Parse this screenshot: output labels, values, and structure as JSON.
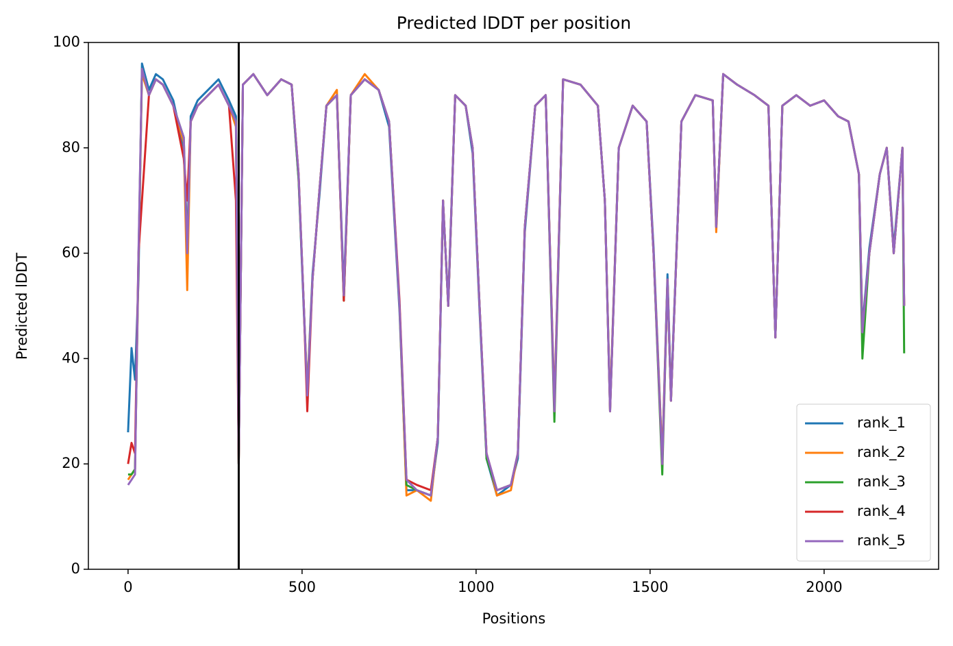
{
  "chart_data": {
    "type": "line",
    "title": "Predicted lDDT per position",
    "xlabel": "Positions",
    "ylabel": "Predicted lDDT",
    "x": [
      0,
      10,
      20,
      30,
      40,
      60,
      80,
      100,
      130,
      160,
      170,
      180,
      200,
      230,
      260,
      290,
      310,
      318,
      330,
      360,
      400,
      440,
      470,
      490,
      505,
      515,
      530,
      550,
      570,
      600,
      620,
      640,
      680,
      720,
      750,
      780,
      800,
      830,
      870,
      890,
      905,
      920,
      940,
      970,
      990,
      1010,
      1030,
      1060,
      1100,
      1120,
      1140,
      1170,
      1200,
      1225,
      1250,
      1300,
      1350,
      1370,
      1385,
      1410,
      1450,
      1490,
      1510,
      1535,
      1550,
      1560,
      1590,
      1630,
      1680,
      1690,
      1710,
      1750,
      1800,
      1840,
      1860,
      1880,
      1920,
      1960,
      2000,
      2040,
      2070,
      2100,
      2110,
      2130,
      2160,
      2180,
      2200,
      2225,
      2230
    ],
    "series": [
      {
        "name": "rank_1",
        "color": "#1f77b4",
        "values": [
          26,
          42,
          36,
          55,
          96,
          91,
          94,
          93,
          89,
          80,
          62,
          86,
          89,
          91,
          93,
          89,
          86,
          20,
          92,
          94,
          90,
          93,
          92,
          74,
          49,
          34,
          56,
          71,
          88,
          90,
          53,
          90,
          93,
          91,
          84,
          49,
          15,
          15,
          14,
          24,
          69,
          51,
          90,
          88,
          79,
          49,
          21,
          14,
          16,
          21,
          64,
          88,
          90,
          31,
          93,
          92,
          88,
          70,
          31,
          80,
          88,
          85,
          61,
          21,
          56,
          33,
          85,
          90,
          89,
          65,
          94,
          92,
          90,
          88,
          44,
          88,
          90,
          88,
          89,
          86,
          85,
          75,
          46,
          61,
          75,
          80,
          61,
          80,
          50
        ]
      },
      {
        "name": "rank_2",
        "color": "#ff7f0e",
        "values": [
          17,
          18,
          19,
          58,
          94,
          90,
          93,
          92,
          88,
          81,
          53,
          85,
          88,
          90,
          92,
          88,
          84,
          20,
          92,
          94,
          90,
          93,
          92,
          75,
          50,
          34,
          55,
          72,
          88,
          91,
          51,
          90,
          94,
          91,
          85,
          50,
          14,
          15,
          13,
          25,
          70,
          50,
          90,
          88,
          80,
          50,
          22,
          14,
          15,
          22,
          65,
          88,
          90,
          31,
          93,
          92,
          88,
          70,
          31,
          80,
          88,
          85,
          60,
          21,
          55,
          32,
          85,
          90,
          89,
          64,
          94,
          92,
          90,
          88,
          44,
          88,
          90,
          88,
          89,
          86,
          85,
          75,
          45,
          60,
          75,
          80,
          60,
          80,
          50
        ]
      },
      {
        "name": "rank_3",
        "color": "#2ca02c",
        "values": [
          18,
          18,
          19,
          59,
          95,
          90,
          93,
          92,
          88,
          82,
          61,
          85,
          88,
          90,
          92,
          88,
          85,
          20,
          92,
          94,
          90,
          93,
          92,
          74,
          50,
          33,
          55,
          72,
          88,
          90,
          51,
          90,
          93,
          91,
          85,
          50,
          16,
          15,
          14,
          25,
          70,
          50,
          90,
          88,
          80,
          50,
          21,
          15,
          16,
          22,
          65,
          88,
          90,
          28,
          93,
          92,
          88,
          70,
          30,
          80,
          88,
          85,
          60,
          18,
          55,
          32,
          85,
          90,
          89,
          65,
          94,
          92,
          90,
          88,
          44,
          88,
          90,
          88,
          89,
          86,
          85,
          75,
          40,
          60,
          75,
          80,
          60,
          80,
          41
        ]
      },
      {
        "name": "rank_4",
        "color": "#d62728",
        "values": [
          20,
          24,
          22,
          60,
          70,
          90,
          93,
          92,
          88,
          78,
          70,
          85,
          88,
          90,
          92,
          88,
          70,
          20,
          92,
          94,
          90,
          93,
          92,
          75,
          50,
          30,
          55,
          72,
          88,
          90,
          51,
          90,
          93,
          91,
          85,
          51,
          17,
          16,
          15,
          25,
          70,
          50,
          90,
          88,
          80,
          50,
          22,
          15,
          16,
          22,
          65,
          88,
          90,
          30,
          93,
          92,
          88,
          70,
          30,
          80,
          88,
          85,
          60,
          20,
          55,
          32,
          85,
          90,
          89,
          65,
          94,
          92,
          90,
          88,
          44,
          88,
          90,
          88,
          89,
          86,
          85,
          75,
          45,
          60,
          75,
          80,
          60,
          80,
          50
        ]
      },
      {
        "name": "rank_5",
        "color": "#9467bd",
        "values": [
          16,
          17,
          18,
          60,
          95,
          90,
          93,
          92,
          88,
          82,
          60,
          85,
          88,
          90,
          92,
          88,
          85,
          20,
          92,
          94,
          90,
          93,
          92,
          75,
          50,
          33,
          55,
          72,
          88,
          90,
          52,
          90,
          93,
          91,
          85,
          50,
          17,
          15,
          14,
          25,
          70,
          50,
          90,
          88,
          80,
          50,
          22,
          15,
          16,
          22,
          65,
          88,
          90,
          30,
          93,
          92,
          88,
          70,
          30,
          80,
          88,
          85,
          60,
          20,
          55,
          32,
          85,
          90,
          89,
          65,
          94,
          92,
          90,
          88,
          44,
          88,
          90,
          88,
          89,
          86,
          85,
          75,
          45,
          60,
          75,
          80,
          60,
          80,
          50
        ]
      }
    ],
    "vline": 318,
    "xlim": [
      -114,
      2329
    ],
    "xticks": [
      0,
      500,
      1000,
      1500,
      2000
    ],
    "ylim": [
      0,
      100
    ],
    "yticks": [
      0,
      20,
      40,
      60,
      80,
      100
    ],
    "grid": false,
    "legend": "lower right"
  }
}
